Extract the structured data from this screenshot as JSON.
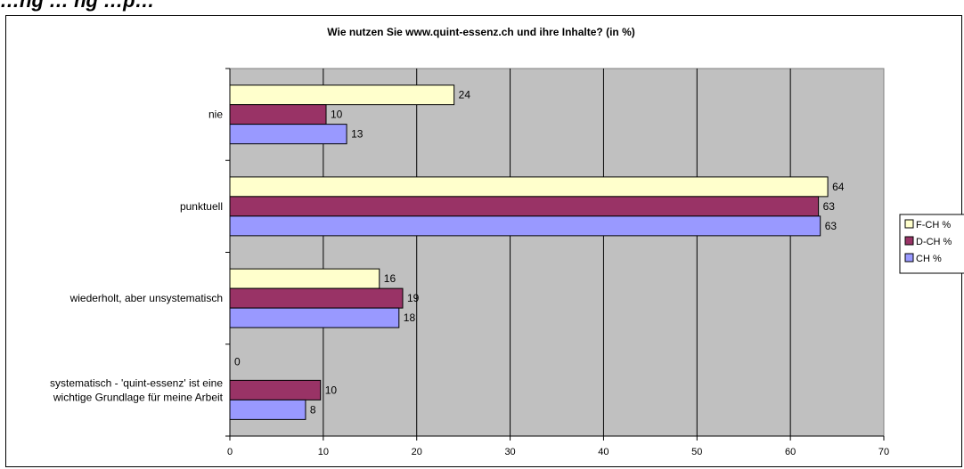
{
  "page_heading": "…ng … ng …p…",
  "chart_data": {
    "type": "bar",
    "orientation": "horizontal",
    "title": "Wie nutzen Sie www.quint-essenz.ch und ihre Inhalte? (in %)",
    "categories": [
      [
        "nie"
      ],
      [
        "punktuell"
      ],
      [
        "wiederholt, aber unsystematisch"
      ],
      [
        "systematisch - 'quint-essenz' ist eine",
        "wichtige Grundlage für meine Arbeit"
      ]
    ],
    "series": [
      {
        "name": "F-CH %",
        "color": "#ffffcc",
        "values": [
          24,
          64,
          16,
          0
        ]
      },
      {
        "name": "D-CH %",
        "color": "#993366",
        "values": [
          10,
          63,
          19,
          10
        ]
      },
      {
        "name": "CH %",
        "color": "#9999ff",
        "values": [
          13,
          63,
          18,
          8
        ]
      }
    ],
    "bar_values_precise": [
      [
        24,
        64,
        16,
        0
      ],
      [
        10.3,
        63,
        18.5,
        9.7
      ],
      [
        12.5,
        63.2,
        18.1,
        8.1
      ]
    ],
    "xlim": [
      0,
      70
    ],
    "xticks": [
      0,
      10,
      20,
      30,
      40,
      50,
      60,
      70
    ],
    "plot_background": "#c0c0c0",
    "grid": true,
    "legend_position": "right"
  }
}
